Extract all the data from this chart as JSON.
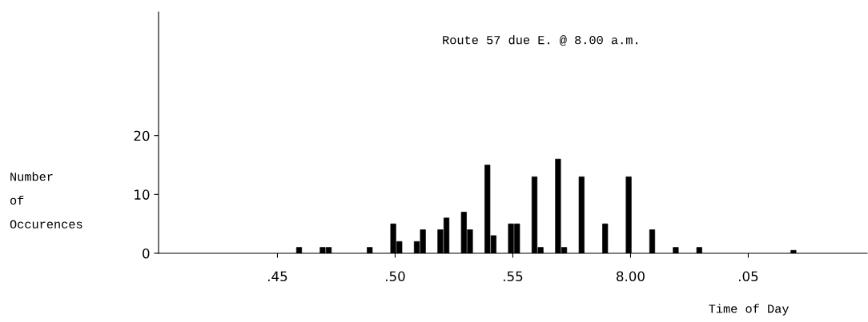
{
  "chart_data": {
    "type": "bar",
    "title": "Route 57 due E. @ 8.00 a.m.",
    "xlabel": "Time of Day",
    "ylabel": "Number\nof\nOccurences",
    "categories": [
      null,
      null,
      null,
      null,
      null,
      ".45",
      null,
      null,
      null,
      null,
      ".50",
      null,
      null,
      null,
      null,
      ".55",
      null,
      null,
      null,
      null,
      "8.00",
      null,
      null,
      null,
      null,
      ".05",
      null,
      null,
      null,
      null,
      null
    ],
    "series": [
      {
        "color": "#000000",
        "values": [
          null,
          null,
          null,
          null,
          null,
          null,
          1,
          1,
          null,
          1,
          5,
          2,
          4,
          7,
          15,
          5,
          13,
          16,
          13,
          5,
          13,
          4,
          1,
          1,
          null,
          null,
          null,
          0.5,
          null,
          null,
          null
        ]
      },
      {
        "color": "#000000",
        "values": [
          null,
          null,
          null,
          null,
          null,
          null,
          null,
          1,
          null,
          null,
          2,
          4,
          6,
          4,
          3,
          5,
          1,
          1,
          null,
          null,
          null,
          null,
          null,
          null,
          null,
          null,
          null,
          null,
          null,
          null,
          null
        ]
      }
    ],
    "ylim": [
      0,
      41
    ],
    "yticks": [
      0,
      10,
      20
    ],
    "grid": false
  }
}
